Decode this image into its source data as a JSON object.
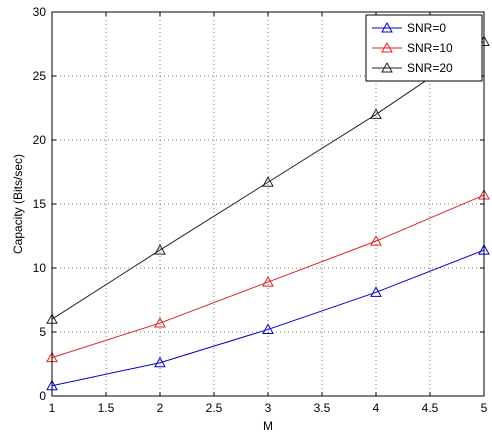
{
  "chart_data": {
    "type": "line",
    "xlabel": "M",
    "ylabel": "Capacity (Bits/sec)",
    "xlim": [
      1,
      5
    ],
    "ylim": [
      0,
      30
    ],
    "xticks": [
      1,
      1.5,
      2,
      2.5,
      3,
      3.5,
      4,
      4.5,
      5
    ],
    "xtick_labels": [
      "1",
      "1.5",
      "2",
      "2.5",
      "3",
      "3.5",
      "4",
      "4.5",
      "5"
    ],
    "yticks": [
      0,
      5,
      10,
      15,
      20,
      25,
      30
    ],
    "ytick_labels": [
      "0",
      "5",
      "10",
      "15",
      "20",
      "25",
      "30"
    ],
    "grid": true,
    "legend_position": "top-right",
    "x": [
      1,
      2,
      3,
      4,
      5
    ],
    "series": [
      {
        "name": "SNR=0",
        "color": "#0000cc",
        "marker": "triangle",
        "values": [
          0.8,
          2.6,
          5.2,
          8.1,
          11.4
        ]
      },
      {
        "name": "SNR=10",
        "color": "#dd2222",
        "marker": "triangle",
        "values": [
          3.0,
          5.7,
          8.9,
          12.1,
          15.7
        ]
      },
      {
        "name": "SNR=20",
        "color": "#222222",
        "marker": "triangle",
        "values": [
          6.0,
          11.4,
          16.7,
          22.0,
          27.7
        ]
      }
    ]
  }
}
